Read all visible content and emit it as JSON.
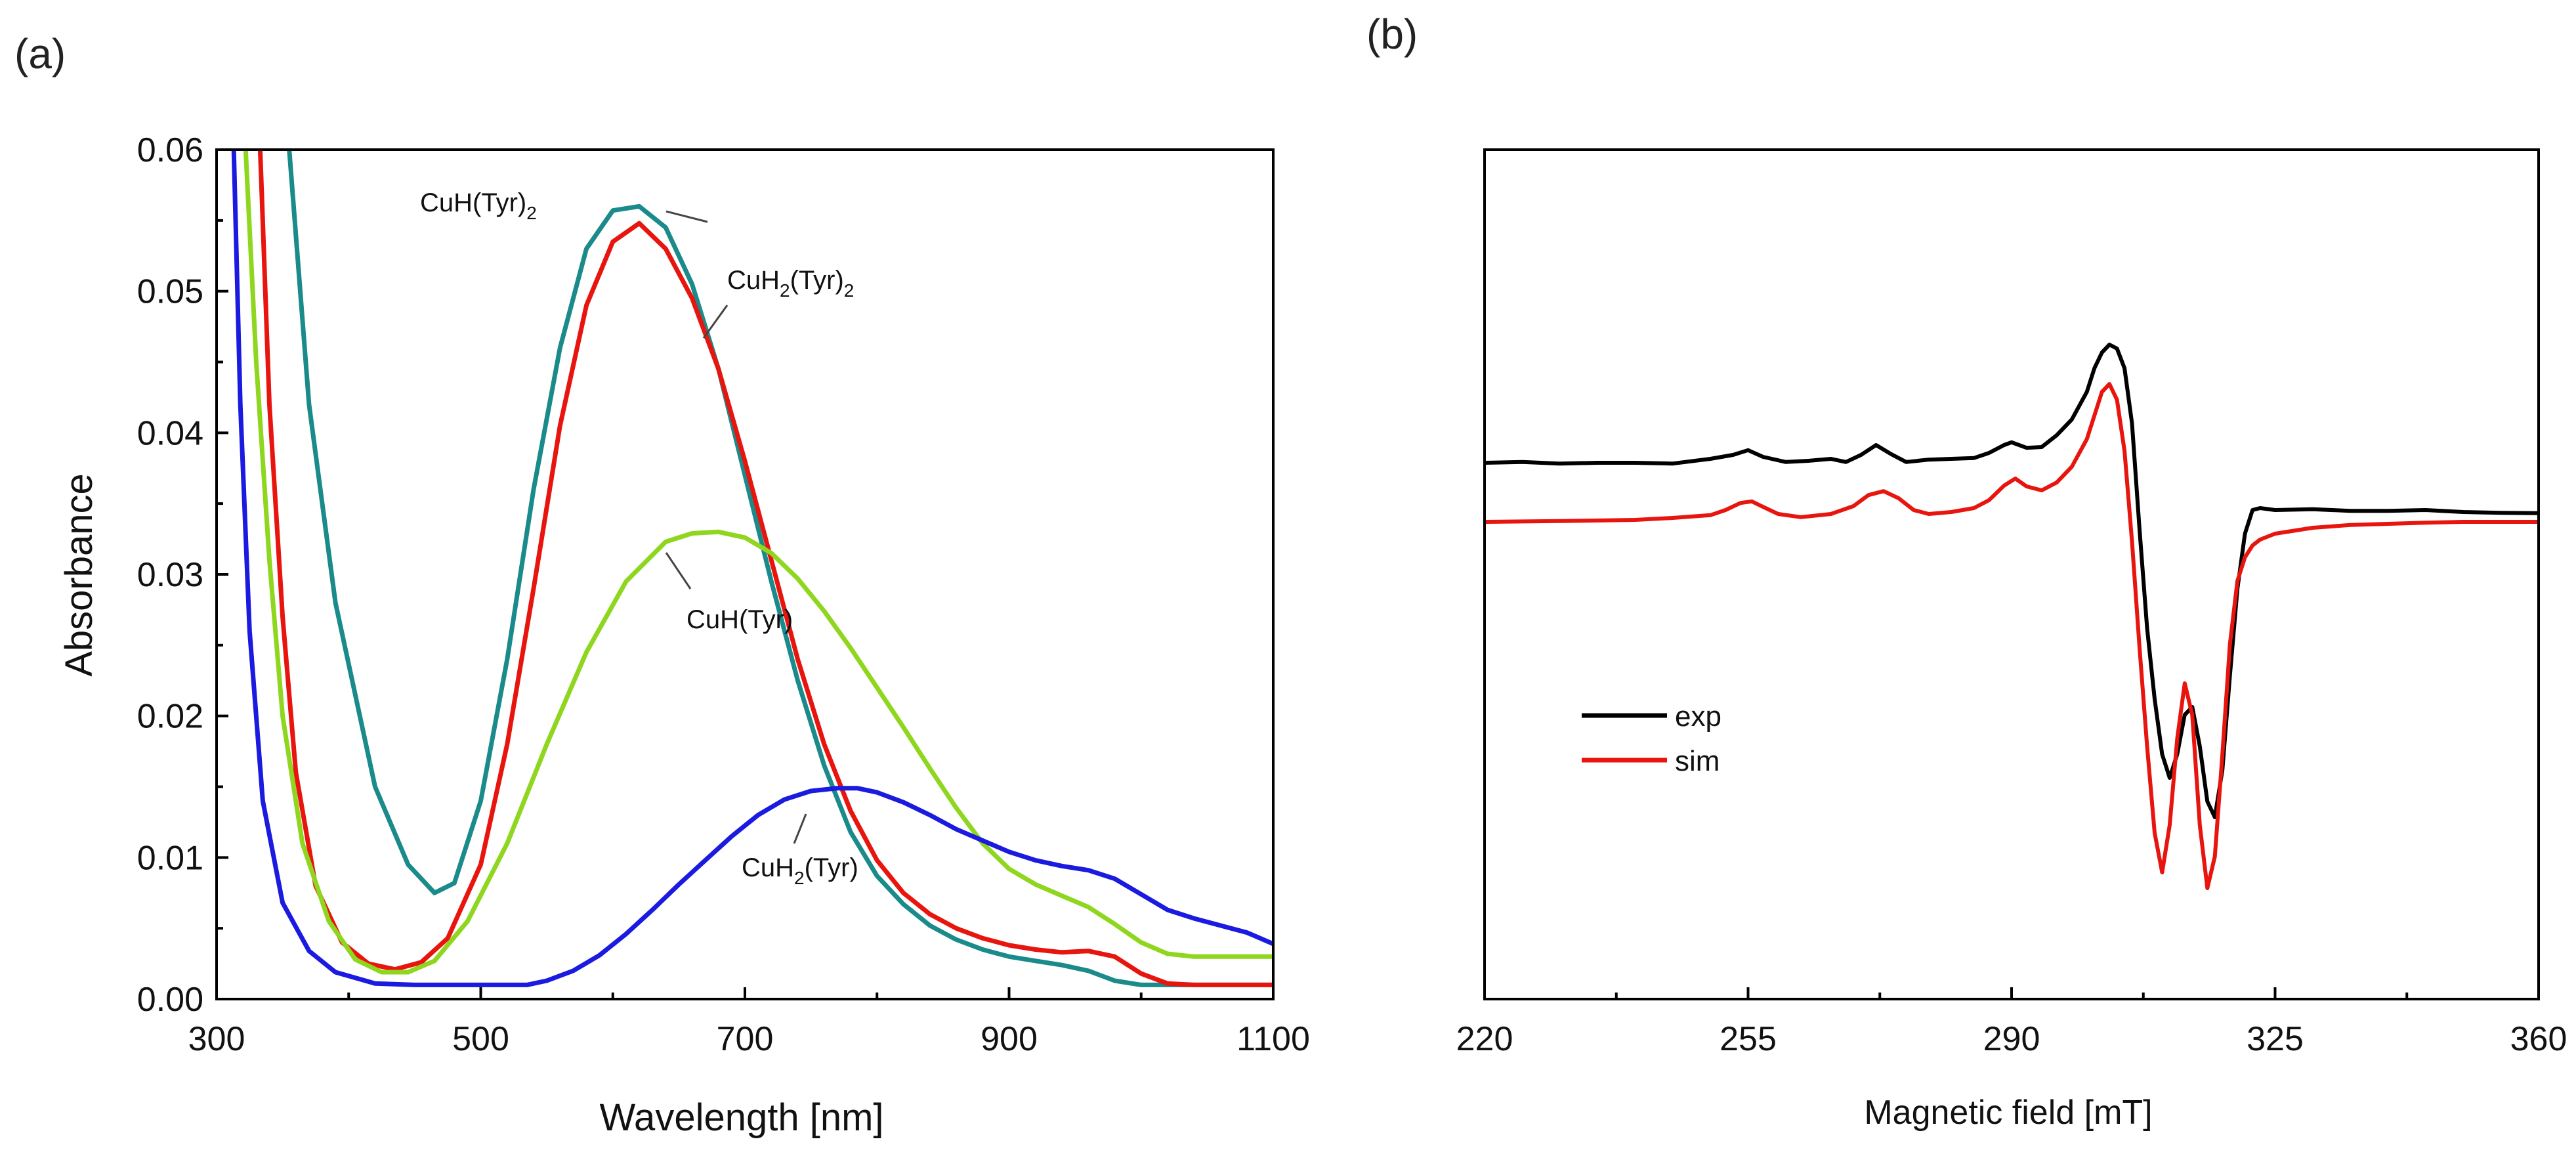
{
  "chart_data": [
    {
      "panel": "(a)",
      "type": "line",
      "xlabel": "Wavelength [nm]",
      "ylabel": "Absorbance",
      "xlim": [
        300,
        1100
      ],
      "ylim": [
        0,
        0.06
      ],
      "xticks": [
        300,
        500,
        700,
        900,
        1100
      ],
      "yticks": [
        "0.00",
        "0.01",
        "0.02",
        "0.03",
        "0.04",
        "0.05",
        "0.06"
      ],
      "grid": false,
      "series": [
        {
          "name": "CuH(Tyr)2",
          "color": "#1a8a8a",
          "x": [
            355,
            370,
            390,
            420,
            445,
            465,
            480,
            500,
            520,
            540,
            560,
            580,
            600,
            620,
            640,
            660,
            680,
            700,
            720,
            740,
            760,
            780,
            800,
            820,
            840,
            860,
            880,
            900,
            920,
            940,
            960,
            980,
            1000,
            1020,
            1040,
            1060,
            1080,
            1100
          ],
          "y": [
            0.06,
            0.042,
            0.028,
            0.015,
            0.0095,
            0.0075,
            0.0082,
            0.014,
            0.024,
            0.036,
            0.046,
            0.053,
            0.0557,
            0.056,
            0.0545,
            0.0505,
            0.0445,
            0.037,
            0.0295,
            0.0225,
            0.0165,
            0.0118,
            0.0087,
            0.0067,
            0.0052,
            0.0042,
            0.0035,
            0.003,
            0.0027,
            0.0024,
            0.002,
            0.0013,
            0.001,
            0.001,
            0.001,
            0.001,
            0.001,
            0.001
          ]
        },
        {
          "name": "CuH2(Tyr)2",
          "color": "#e8150f",
          "x": [
            333,
            340,
            350,
            360,
            375,
            395,
            415,
            435,
            455,
            475,
            500,
            520,
            540,
            560,
            580,
            600,
            620,
            640,
            660,
            680,
            700,
            720,
            740,
            760,
            780,
            800,
            820,
            840,
            860,
            880,
            900,
            920,
            940,
            960,
            980,
            1000,
            1020,
            1040,
            1060,
            1080,
            1100
          ],
          "y": [
            0.06,
            0.042,
            0.027,
            0.016,
            0.008,
            0.004,
            0.0025,
            0.0021,
            0.0026,
            0.0043,
            0.0095,
            0.018,
            0.029,
            0.0405,
            0.049,
            0.0535,
            0.0548,
            0.053,
            0.0495,
            0.0445,
            0.038,
            0.031,
            0.024,
            0.018,
            0.0133,
            0.0098,
            0.0075,
            0.006,
            0.005,
            0.0043,
            0.0038,
            0.0035,
            0.0033,
            0.0034,
            0.003,
            0.0018,
            0.0011,
            0.001,
            0.001,
            0.001,
            0.001
          ]
        },
        {
          "name": "CuH(Tyr)",
          "color": "#8fd61f",
          "x": [
            322,
            330,
            340,
            350,
            365,
            385,
            405,
            425,
            445,
            465,
            490,
            520,
            550,
            580,
            610,
            640,
            660,
            680,
            700,
            720,
            740,
            760,
            780,
            800,
            820,
            840,
            860,
            880,
            900,
            920,
            940,
            960,
            980,
            1000,
            1020,
            1040,
            1060,
            1080,
            1100
          ],
          "y": [
            0.06,
            0.045,
            0.031,
            0.02,
            0.011,
            0.0055,
            0.0028,
            0.0019,
            0.0019,
            0.0027,
            0.0055,
            0.011,
            0.018,
            0.0245,
            0.0295,
            0.0323,
            0.0329,
            0.033,
            0.0326,
            0.0315,
            0.0297,
            0.0274,
            0.0248,
            0.022,
            0.0192,
            0.0163,
            0.0135,
            0.011,
            0.0092,
            0.0081,
            0.0073,
            0.0065,
            0.0053,
            0.004,
            0.0032,
            0.003,
            0.003,
            0.003,
            0.003
          ]
        },
        {
          "name": "CuH2(Tyr)",
          "color": "#1a1ae0",
          "x": [
            313,
            318,
            325,
            335,
            350,
            370,
            390,
            420,
            450,
            480,
            510,
            535,
            550,
            570,
            590,
            610,
            630,
            650,
            670,
            690,
            710,
            730,
            750,
            770,
            785,
            800,
            820,
            840,
            860,
            880,
            900,
            920,
            940,
            960,
            980,
            1000,
            1020,
            1040,
            1060,
            1080,
            1100
          ],
          "y": [
            0.06,
            0.042,
            0.026,
            0.014,
            0.0068,
            0.0034,
            0.0019,
            0.0011,
            0.001,
            0.001,
            0.001,
            0.001,
            0.0013,
            0.002,
            0.0031,
            0.0046,
            0.0063,
            0.0081,
            0.0098,
            0.0115,
            0.013,
            0.0141,
            0.0147,
            0.0149,
            0.0149,
            0.0146,
            0.0139,
            0.013,
            0.012,
            0.0112,
            0.0104,
            0.0098,
            0.0094,
            0.0091,
            0.0085,
            0.0074,
            0.0063,
            0.0057,
            0.0052,
            0.0047,
            0.0039
          ]
        }
      ],
      "annotations": [
        {
          "text": "CuH(Tyr)",
          "sub": "2",
          "color_series": "CuH(Tyr)2"
        },
        {
          "text": "CuH",
          "sub": "2",
          "text2": "(Tyr)",
          "sub2": "2"
        },
        {
          "text": "CuH(Tyr)"
        },
        {
          "text": "CuH",
          "sub": "2",
          "text2": "(Tyr)"
        }
      ]
    },
    {
      "panel": "(b)",
      "type": "line",
      "xlabel": "Magnetic field [mT]",
      "ylabel": "",
      "xlim": [
        220,
        360
      ],
      "xticks": [
        220,
        255,
        290,
        325,
        360
      ],
      "y_axis_labels": false,
      "grid": false,
      "legend_position": "left-middle",
      "series": [
        {
          "name": "exp",
          "color": "#000000",
          "x": [
            220,
            225,
            230,
            235,
            240,
            245,
            250,
            253,
            255,
            257,
            260,
            263,
            266,
            268,
            270,
            272,
            274,
            276,
            279,
            282,
            285,
            287,
            289,
            290,
            292,
            294,
            296,
            298,
            300,
            301,
            302,
            303,
            304,
            305,
            306,
            307,
            308,
            309,
            310,
            311,
            312,
            313,
            314,
            315,
            316,
            317,
            318,
            319,
            320,
            321,
            322,
            323,
            325,
            330,
            335,
            340,
            345,
            350,
            355,
            360
          ],
          "y": [
            0.42,
            0.422,
            0.418,
            0.42,
            0.42,
            0.418,
            0.43,
            0.44,
            0.452,
            0.435,
            0.422,
            0.425,
            0.43,
            0.422,
            0.44,
            0.465,
            0.442,
            0.422,
            0.428,
            0.43,
            0.432,
            0.445,
            0.465,
            0.472,
            0.458,
            0.46,
            0.49,
            0.53,
            0.6,
            0.66,
            0.7,
            0.72,
            0.71,
            0.66,
            0.52,
            0.25,
            0.0,
            -0.18,
            -0.32,
            -0.38,
            -0.32,
            -0.22,
            -0.2,
            -0.3,
            -0.44,
            -0.48,
            -0.36,
            -0.12,
            0.1,
            0.24,
            0.3,
            0.305,
            0.3,
            0.302,
            0.298,
            0.298,
            0.3,
            0.295,
            0.293,
            0.292
          ]
        },
        {
          "name": "sim",
          "color": "#e8150f",
          "x": [
            220,
            230,
            240,
            245,
            250,
            252,
            254,
            255.5,
            257,
            259,
            262,
            266,
            269,
            271,
            273,
            275,
            277,
            279,
            282,
            285,
            287,
            289,
            290.5,
            292,
            294,
            296,
            298,
            300,
            301,
            302,
            303,
            304,
            305,
            306,
            307,
            308,
            309,
            310,
            311,
            312,
            313,
            314,
            315,
            316,
            317,
            318,
            319,
            320,
            321,
            322,
            323,
            325,
            330,
            335,
            340,
            345,
            350,
            355,
            360
          ],
          "y": [
            0.27,
            0.272,
            0.275,
            0.28,
            0.287,
            0.3,
            0.318,
            0.322,
            0.308,
            0.29,
            0.282,
            0.29,
            0.31,
            0.338,
            0.348,
            0.33,
            0.3,
            0.29,
            0.295,
            0.305,
            0.325,
            0.362,
            0.38,
            0.36,
            0.35,
            0.37,
            0.41,
            0.48,
            0.54,
            0.6,
            0.62,
            0.58,
            0.45,
            0.22,
            -0.05,
            -0.3,
            -0.52,
            -0.62,
            -0.5,
            -0.28,
            -0.14,
            -0.22,
            -0.5,
            -0.66,
            -0.58,
            -0.32,
            -0.04,
            0.12,
            0.18,
            0.21,
            0.225,
            0.24,
            0.255,
            0.262,
            0.265,
            0.268,
            0.27,
            0.27,
            0.27
          ]
        }
      ]
    }
  ]
}
